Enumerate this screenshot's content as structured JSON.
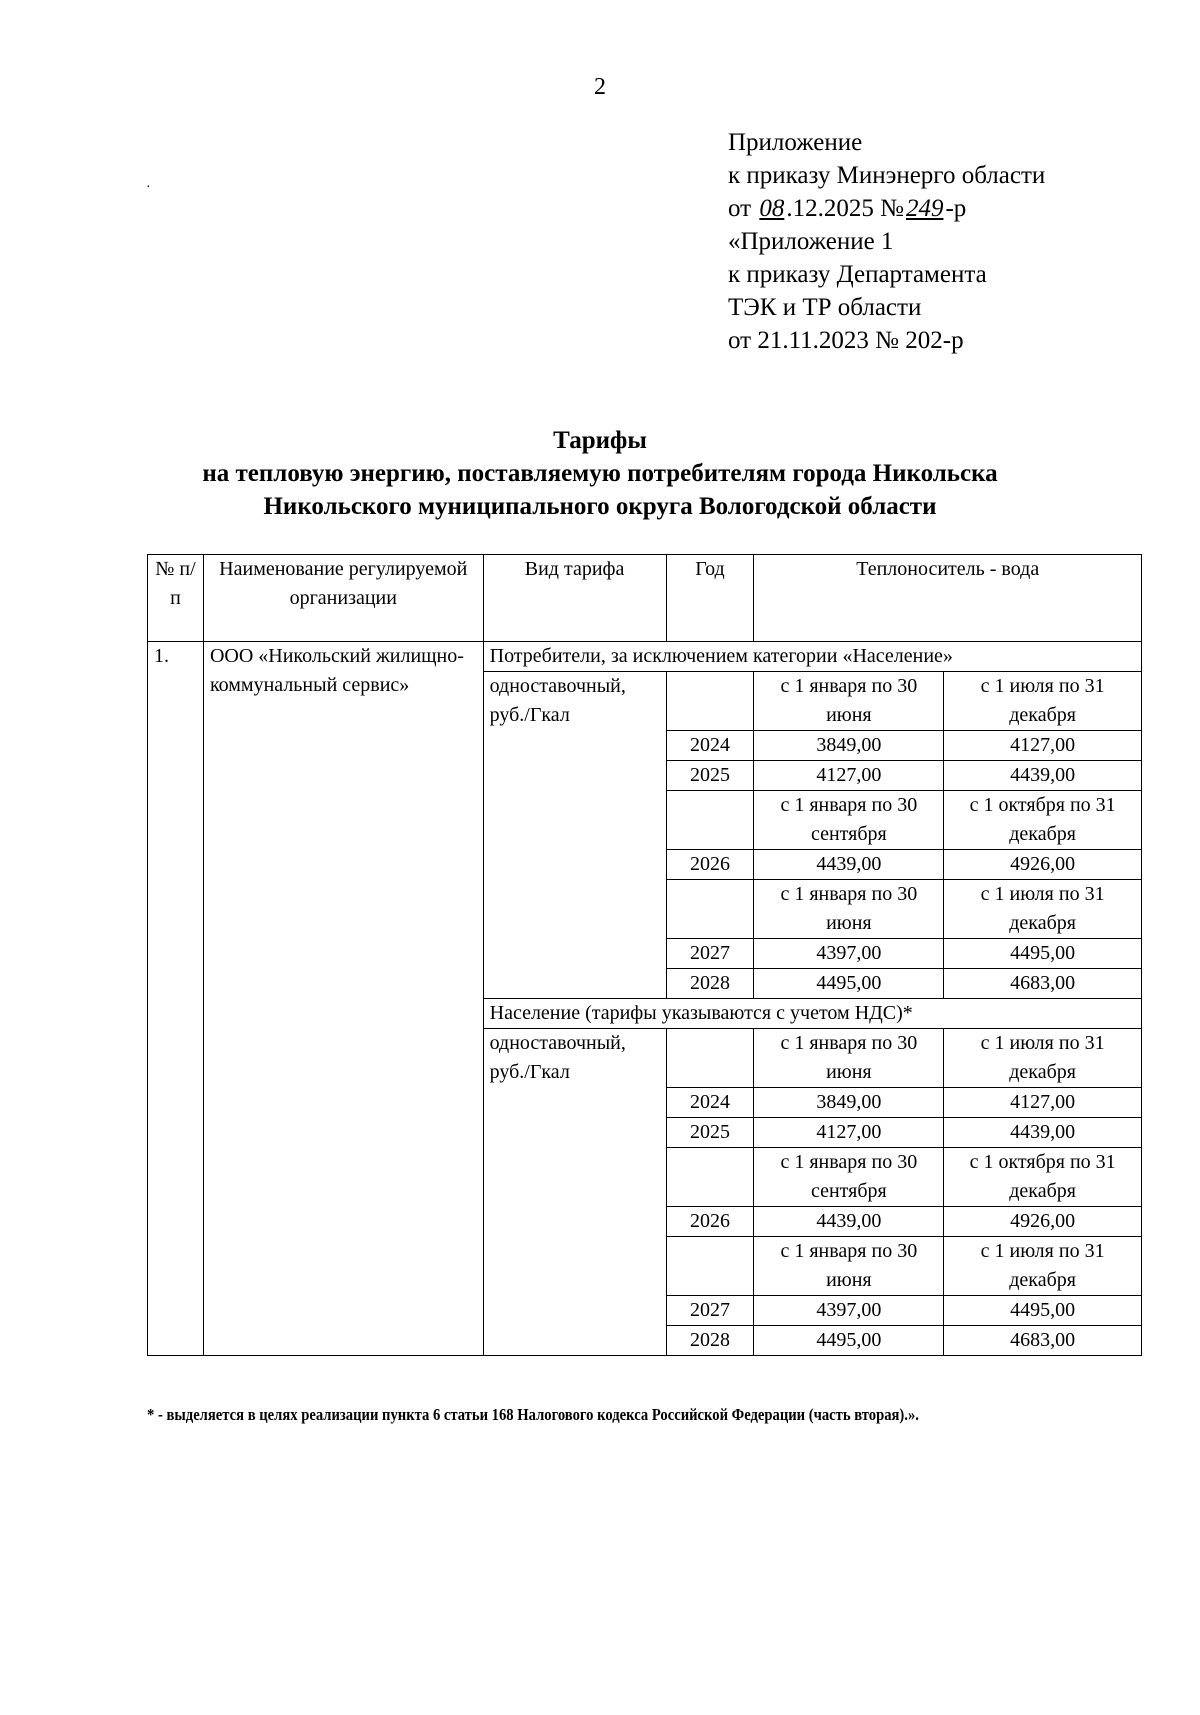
{
  "page_number": "2",
  "appendix": {
    "line1": "Приложение",
    "line2": "к приказу Минэнерго области",
    "line3_prefix": "от ",
    "line3_day_handwritten": "08",
    "line3_mid": ".12.2025 №",
    "line3_number_handwritten": "249",
    "line3_suffix": "-р",
    "line4": "«Приложение 1",
    "line5": "к приказу Департамента",
    "line6": "ТЭК и ТР области",
    "line7": "от 21.11.2023 № 202-р"
  },
  "title": {
    "line1": "Тарифы",
    "line2": "на тепловую энергию, поставляемую потребителям города Никольска",
    "line3": "Никольского муниципального округа Вологодской области"
  },
  "table": {
    "headers": {
      "num": "№ п/п",
      "org": "Наименование регулируемой организации",
      "type": "Вид тарифа",
      "year": "Год",
      "carrier": "Теплоноситель - вода"
    },
    "row_number": "1.",
    "organization": "ООО «Никольский жилищно-коммунальный сервис»",
    "sections": [
      {
        "title": "Потребители, за исключением категории «Население»",
        "tariff_type": "одноставочный, руб./Гкал",
        "rows": [
          {
            "kind": "period",
            "p1": "с 1 января по 30 июня",
            "p2": "с 1 июля по 31 декабря"
          },
          {
            "kind": "value",
            "year": "2024",
            "v1": "3849,00",
            "v2": "4127,00"
          },
          {
            "kind": "value",
            "year": "2025",
            "v1": "4127,00",
            "v2": "4439,00"
          },
          {
            "kind": "period",
            "p1": "с 1 января по 30 сентября",
            "p2": "с 1 октября по 31 декабря"
          },
          {
            "kind": "value",
            "year": "2026",
            "v1": "4439,00",
            "v2": "4926,00"
          },
          {
            "kind": "period",
            "p1": "с 1 января по 30 июня",
            "p2": "с 1 июля по 31 декабря"
          },
          {
            "kind": "value",
            "year": "2027",
            "v1": "4397,00",
            "v2": "4495,00"
          },
          {
            "kind": "value",
            "year": "2028",
            "v1": "4495,00",
            "v2": "4683,00"
          }
        ]
      },
      {
        "title": "Население (тарифы указываются с учетом НДС)*",
        "tariff_type": "одноставочный, руб./Гкал",
        "rows": [
          {
            "kind": "period",
            "p1": "с 1 января по 30 июня",
            "p2": "с 1 июля по 31 декабря"
          },
          {
            "kind": "value",
            "year": "2024",
            "v1": "3849,00",
            "v2": "4127,00"
          },
          {
            "kind": "value",
            "year": "2025",
            "v1": "4127,00",
            "v2": "4439,00"
          },
          {
            "kind": "period",
            "p1": "с 1 января по 30 сентября",
            "p2": "с 1 октября по 31 декабря"
          },
          {
            "kind": "value",
            "year": "2026",
            "v1": "4439,00",
            "v2": "4926,00"
          },
          {
            "kind": "period",
            "p1": "с 1 января по 30 июня",
            "p2": "с 1 июля по 31 декабря"
          },
          {
            "kind": "value",
            "year": "2027",
            "v1": "4397,00",
            "v2": "4495,00"
          },
          {
            "kind": "value",
            "year": "2028",
            "v1": "4495,00",
            "v2": "4683,00"
          }
        ]
      }
    ]
  },
  "footnote": "* - выделяется в целях реализации пункта 6 статьи 168 Налогового кодекса Российской Федерации (часть вторая).»."
}
